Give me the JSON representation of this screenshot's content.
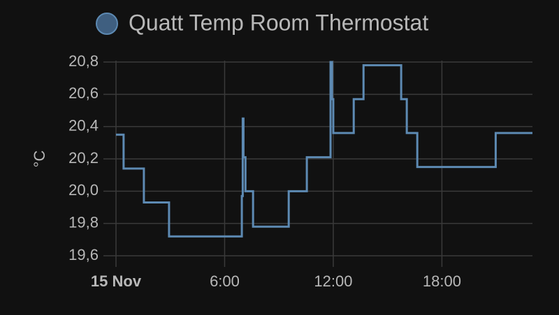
{
  "chart_data": {
    "type": "line",
    "step": true,
    "series": [
      {
        "name": "Quatt Temp Room Thermostat",
        "color": "#5d8ab3",
        "values": [
          20.35,
          20.14,
          19.93,
          19.72,
          19.97,
          20.45,
          20.21,
          20.0,
          19.78,
          20.0,
          20.21,
          20.8,
          20.57,
          20.36,
          20.57,
          20.78,
          20.57,
          20.36,
          20.15,
          20.36,
          20.36
        ]
      }
    ],
    "x": [
      0,
      0.42,
      1.54,
      2.93,
      6.95,
      7.0,
      7.04,
      7.15,
      7.57,
      9.54,
      10.54,
      11.85,
      11.93,
      12.0,
      13.13,
      13.67,
      15.75,
      16.06,
      16.64,
      20.97,
      23
    ],
    "ylabel": "°C",
    "xlim": [
      0,
      23
    ],
    "xticks": [
      {
        "value": 0,
        "label": "15 Nov"
      },
      {
        "value": 6,
        "label": "6:00"
      },
      {
        "value": 12,
        "label": "12:00"
      },
      {
        "value": 18,
        "label": "18:00"
      }
    ],
    "ylim": [
      19.6,
      20.8
    ],
    "yticks": [
      {
        "value": 19.6,
        "label": "19,6"
      },
      {
        "value": 19.8,
        "label": "19,8"
      },
      {
        "value": 20.0,
        "label": "20,0"
      },
      {
        "value": 20.2,
        "label": "20,2"
      },
      {
        "value": 20.4,
        "label": "20,4"
      },
      {
        "value": 20.6,
        "label": "20,6"
      },
      {
        "value": 20.8,
        "label": "20,8"
      }
    ],
    "grid": true,
    "legend": "top"
  }
}
